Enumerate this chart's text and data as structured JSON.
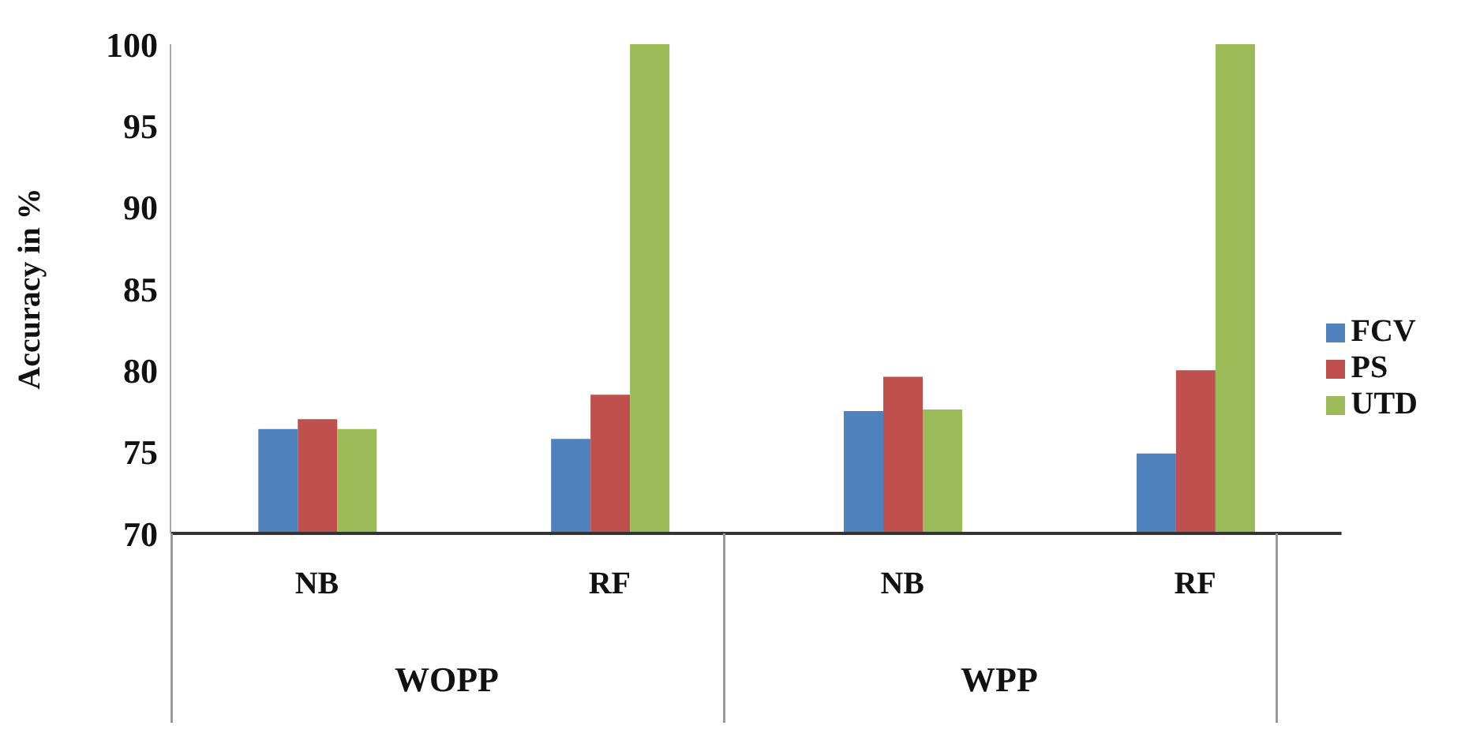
{
  "chart_data": {
    "type": "bar",
    "ylabel": "Accuracy in %",
    "categories": [
      "NB",
      "RF",
      "NB",
      "RF"
    ],
    "annotations": [
      "WOPP",
      "WPP"
    ],
    "series": [
      {
        "name": "FCV",
        "color": "#4f81bd",
        "values": [
          76.4,
          75.8,
          77.5,
          74.9
        ]
      },
      {
        "name": "PS",
        "color": "#c0504d",
        "values": [
          77.0,
          78.5,
          79.6,
          80.0
        ]
      },
      {
        "name": "UTD",
        "color": "#9bbb59",
        "values": [
          76.4,
          100,
          77.6,
          100
        ]
      }
    ],
    "ylim": [
      70,
      100
    ],
    "yticks": [
      70,
      75,
      80,
      85,
      90,
      95,
      100
    ],
    "grid": false,
    "legend": "right"
  }
}
